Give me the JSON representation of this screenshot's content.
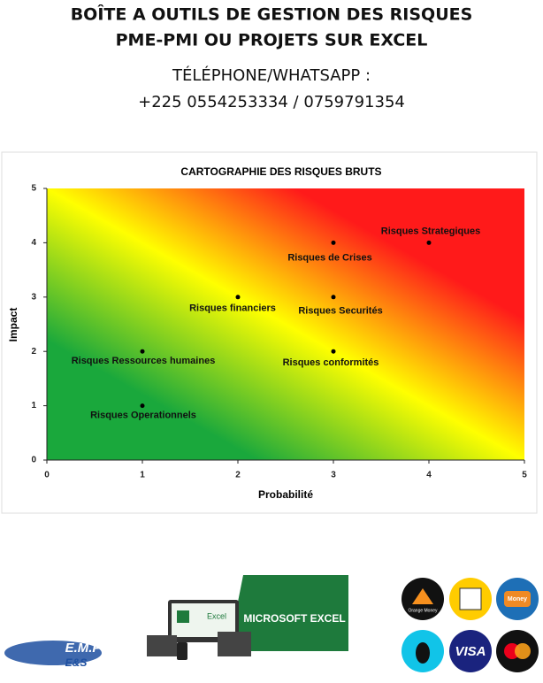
{
  "header": {
    "title_line1": "BOÎTE A OUTILS DE GESTION DES RISQUES",
    "title_line2": "PME-PMI OU PROJETS SUR EXCEL",
    "phone_label": "TÉLÉPHONE/WHATSAPP :",
    "phone_numbers": "+225 0554253334 / 0759791354"
  },
  "chart_data": {
    "type": "scatter",
    "title": "CARTOGRAPHIE DES RISQUES BRUTS",
    "x_label": "Probabilité",
    "y_label": "Impact",
    "x": [
      4,
      3,
      2,
      3,
      1,
      3,
      1
    ],
    "values": [
      4,
      4,
      3,
      3,
      2,
      2,
      1
    ],
    "labels": [
      "Risques Strategiques",
      "Risques de Crises",
      "Risques financiers",
      "Risques Securités",
      "Risques Ressources humaines",
      "Risques conformités",
      "Risques Operationnels"
    ],
    "color": "#000000",
    "xlim": [
      0,
      5
    ],
    "ylim": [
      0,
      5
    ],
    "xticks": [
      0,
      1,
      2,
      3,
      4,
      5
    ],
    "yticks": [
      0,
      1,
      2,
      3,
      4,
      5
    ]
  },
  "footer": {
    "banner": "MICROSOFT EXCEL",
    "app": "Excel",
    "logo_line1": "E.M.P",
    "logo_line2": "E&S",
    "orange": "Orange Money",
    "moov": "Money",
    "visa": "VISA"
  }
}
